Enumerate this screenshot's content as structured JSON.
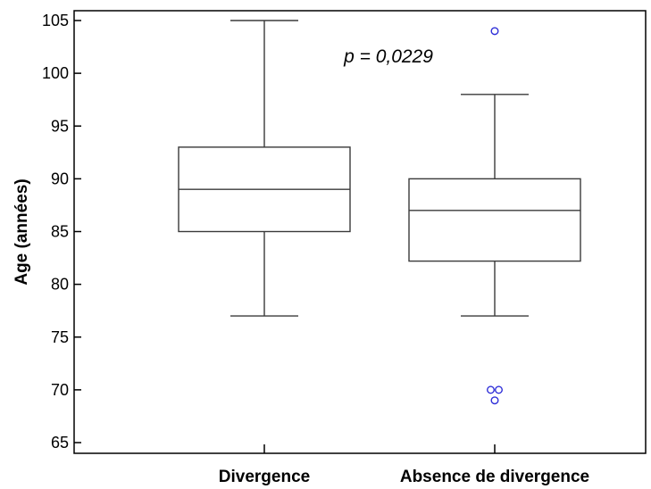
{
  "chart_data": {
    "type": "box",
    "ylabel": "Age (années)",
    "xlabel": "",
    "ylim": [
      64,
      106
    ],
    "yticks": [
      65,
      70,
      75,
      80,
      85,
      90,
      95,
      100,
      105
    ],
    "categories": [
      "Divergence",
      "Absence de divergence"
    ],
    "boxes": [
      {
        "category": "Divergence",
        "whisker_low": 77,
        "q1": 85,
        "median": 89,
        "q3": 93,
        "whisker_high": 105,
        "outliers": []
      },
      {
        "category": "Absence de divergence",
        "whisker_low": 77,
        "q1": 82.2,
        "median": 87,
        "q3": 90,
        "whisker_high": 98,
        "outliers": [
          {
            "value": 104,
            "offset": 0
          },
          {
            "value": 70,
            "offset": -0.5
          },
          {
            "value": 70,
            "offset": 0.5
          },
          {
            "value": 69,
            "offset": 0
          }
        ]
      }
    ],
    "annotation": "p = 0,0229",
    "grid": false,
    "colors": {
      "box_stroke": "#3a3a3a",
      "outlier": "#2f2fd8",
      "axis": "#000000"
    }
  }
}
